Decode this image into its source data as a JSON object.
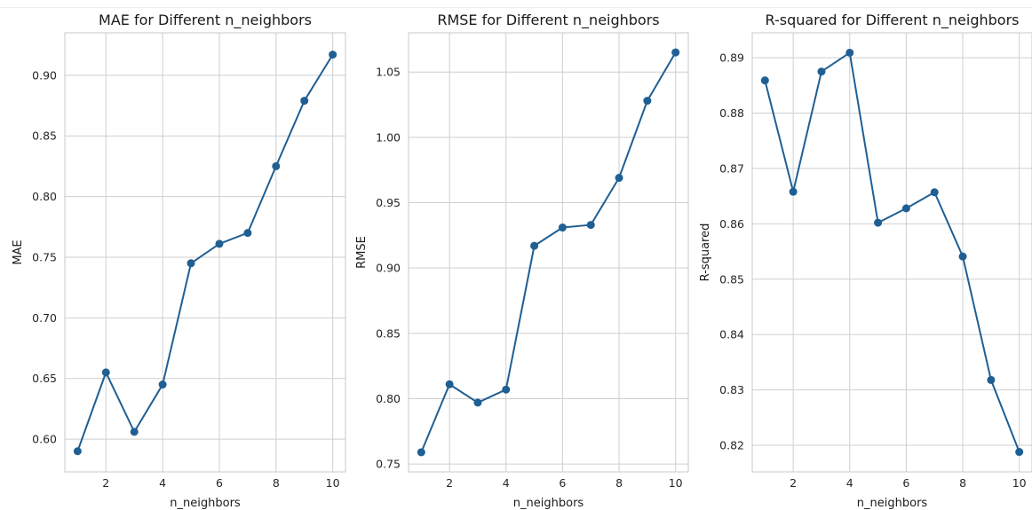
{
  "chart_data": [
    {
      "type": "line",
      "title": "MAE for Different n_neighbors",
      "xlabel": "n_neighbors",
      "ylabel": "MAE",
      "x": [
        1,
        2,
        3,
        4,
        5,
        6,
        7,
        8,
        9,
        10
      ],
      "values": [
        0.59,
        0.655,
        0.606,
        0.645,
        0.745,
        0.761,
        0.77,
        0.825,
        0.879,
        0.917
      ],
      "xlim": [
        0.55,
        10.45
      ],
      "ylim": [
        0.573,
        0.935
      ],
      "xticks": [
        2,
        4,
        6,
        8,
        10
      ],
      "xtick_labels": [
        "2",
        "4",
        "6",
        "8",
        "10"
      ],
      "yticks": [
        0.6,
        0.65,
        0.7,
        0.75,
        0.8,
        0.85,
        0.9
      ],
      "ytick_labels": [
        "0.60",
        "0.65",
        "0.70",
        "0.75",
        "0.80",
        "0.85",
        "0.90"
      ],
      "grid": true,
      "color": "#1f5f93"
    },
    {
      "type": "line",
      "title": "RMSE for Different n_neighbors",
      "xlabel": "n_neighbors",
      "ylabel": "RMSE",
      "x": [
        1,
        2,
        3,
        4,
        5,
        6,
        7,
        8,
        9,
        10
      ],
      "values": [
        0.759,
        0.811,
        0.797,
        0.807,
        0.917,
        0.931,
        0.933,
        0.969,
        1.028,
        1.065
      ],
      "xlim": [
        0.55,
        10.45
      ],
      "ylim": [
        0.744,
        1.08
      ],
      "xticks": [
        2,
        4,
        6,
        8,
        10
      ],
      "xtick_labels": [
        "2",
        "4",
        "6",
        "8",
        "10"
      ],
      "yticks": [
        0.75,
        0.8,
        0.85,
        0.9,
        0.95,
        1.0,
        1.05
      ],
      "ytick_labels": [
        "0.75",
        "0.80",
        "0.85",
        "0.90",
        "0.95",
        "1.00",
        "1.05"
      ],
      "grid": true,
      "color": "#1f5f93"
    },
    {
      "type": "line",
      "title": "R-squared for Different n_neighbors",
      "xlabel": "n_neighbors",
      "ylabel": "R-squared",
      "x": [
        1,
        2,
        3,
        4,
        5,
        6,
        7,
        8,
        9,
        10
      ],
      "values": [
        0.8859,
        0.8658,
        0.8875,
        0.8909,
        0.8602,
        0.8628,
        0.8657,
        0.8541,
        0.8318,
        0.8188
      ],
      "xlim": [
        0.55,
        10.45
      ],
      "ylim": [
        0.8152,
        0.8945
      ],
      "xticks": [
        2,
        4,
        6,
        8,
        10
      ],
      "xtick_labels": [
        "2",
        "4",
        "6",
        "8",
        "10"
      ],
      "yticks": [
        0.82,
        0.83,
        0.84,
        0.85,
        0.86,
        0.87,
        0.88,
        0.89
      ],
      "ytick_labels": [
        "0.82",
        "0.83",
        "0.84",
        "0.85",
        "0.86",
        "0.87",
        "0.88",
        "0.89"
      ],
      "grid": true,
      "color": "#1f5f93"
    }
  ]
}
